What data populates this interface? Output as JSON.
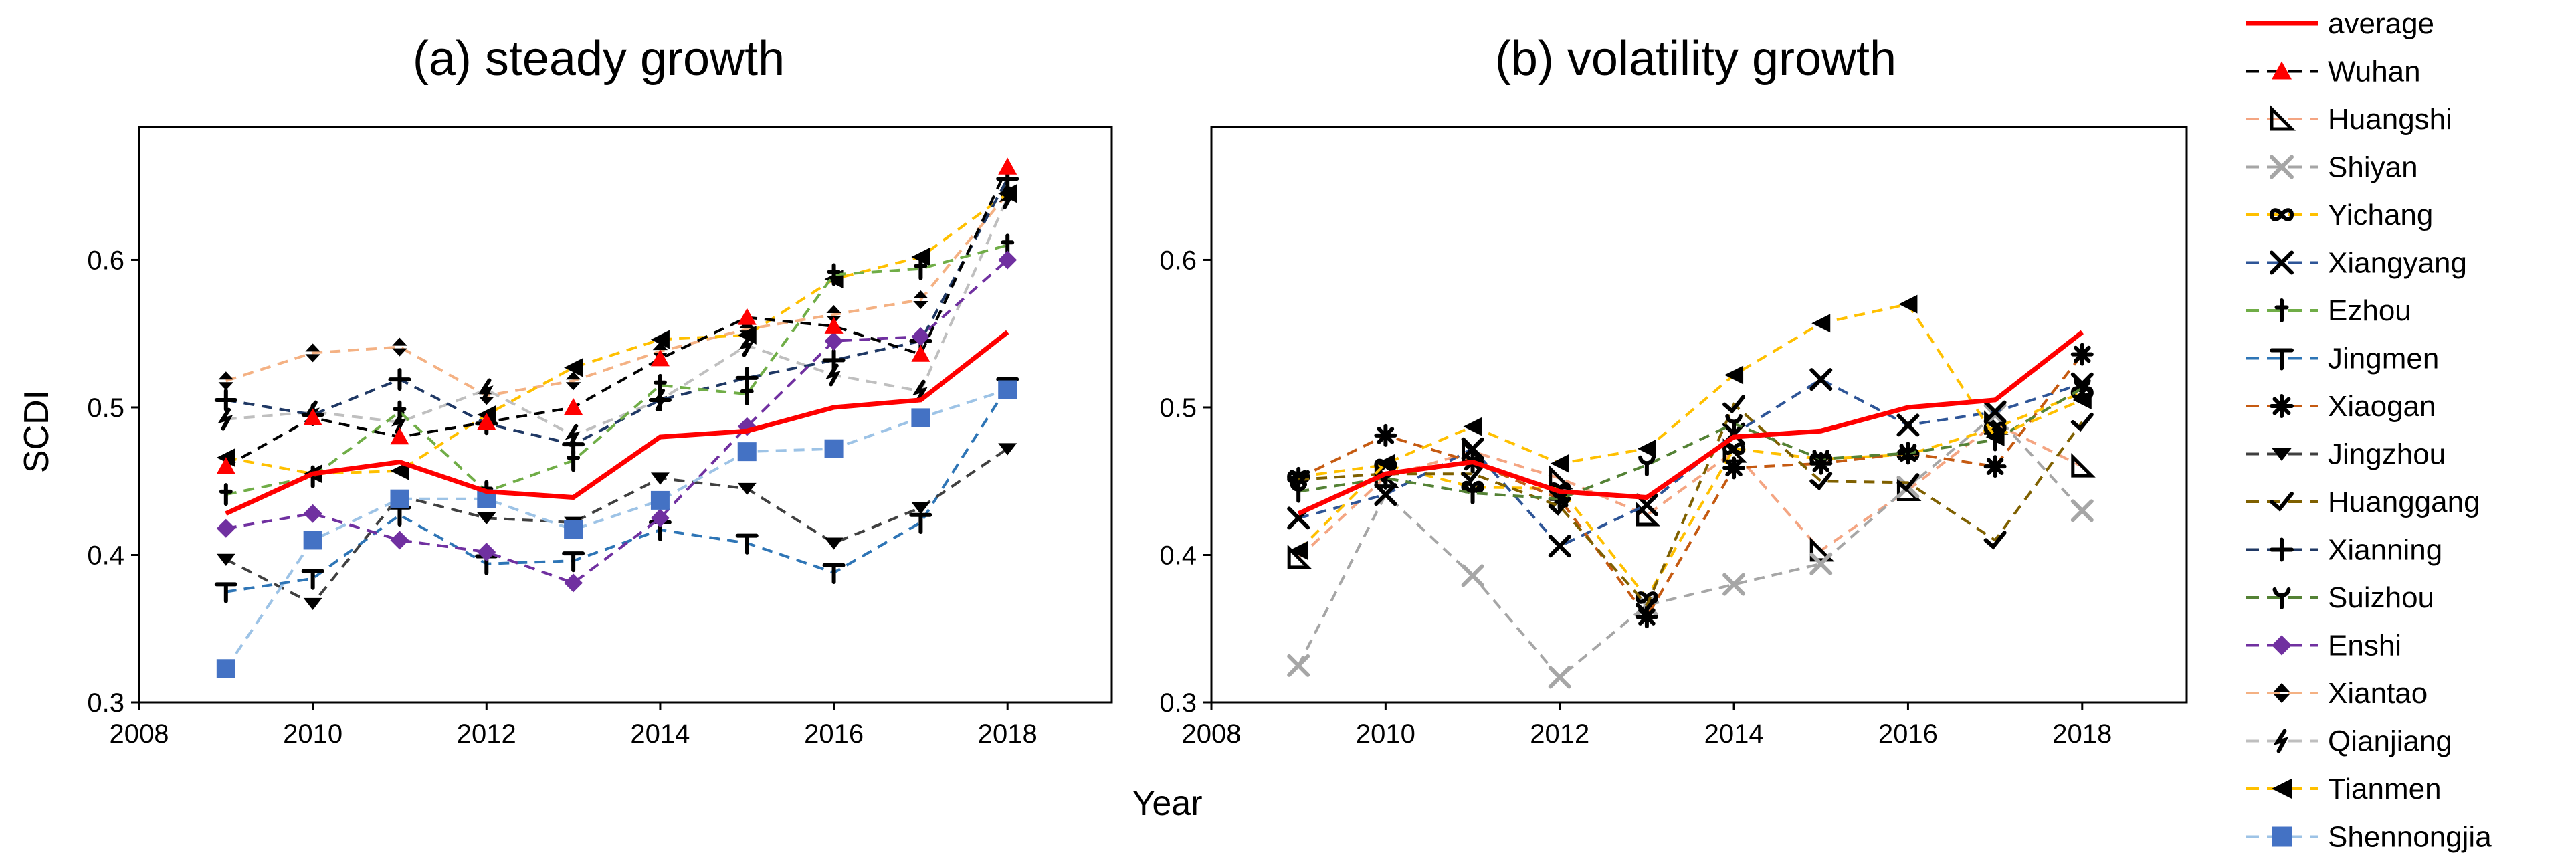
{
  "figure": {
    "shared_xlabel": "Year"
  },
  "legend": {
    "entries": [
      {
        "name": "average",
        "color": "#ff0000",
        "marker": "none",
        "dash": "solid"
      },
      {
        "name": "Wuhan",
        "color": "#000000",
        "marker": "triangle",
        "marker_color": "#ff0000",
        "dash": "dashed"
      },
      {
        "name": "Huangshi",
        "color": "#f4a582",
        "marker": "right-triangle",
        "marker_color": "#000000",
        "dash": "dashed"
      },
      {
        "name": "Shiyan",
        "color": "#a6a6a6",
        "marker": "x",
        "marker_color": "#a6a6a6",
        "dash": "dashed"
      },
      {
        "name": "Yichang",
        "color": "#ffc000",
        "marker": "infinity",
        "marker_color": "#000000",
        "dash": "dashed"
      },
      {
        "name": "Xiangyang",
        "color": "#2e5597",
        "marker": "x",
        "marker_color": "#000000",
        "dash": "dashed"
      },
      {
        "name": "Ezhou",
        "color": "#70ad47",
        "marker": "dagger",
        "marker_color": "#000000",
        "dash": "dashed"
      },
      {
        "name": "Jingmen",
        "color": "#2e75b6",
        "marker": "T",
        "marker_color": "#000000",
        "dash": "dashed"
      },
      {
        "name": "Xiaogan",
        "color": "#c55a11",
        "marker": "asterisk",
        "marker_color": "#000000",
        "dash": "dashed"
      },
      {
        "name": "Jingzhou",
        "color": "#404040",
        "marker": "down-triangle",
        "marker_color": "#000000",
        "dash": "dashed"
      },
      {
        "name": "Huanggang",
        "color": "#7f6000",
        "marker": "check",
        "marker_color": "#000000",
        "dash": "dashed"
      },
      {
        "name": "Xianning",
        "color": "#1f3864",
        "marker": "plus",
        "marker_color": "#000000",
        "dash": "dashed"
      },
      {
        "name": "Suizhou",
        "color": "#548235",
        "marker": "trident",
        "marker_color": "#000000",
        "dash": "dashed"
      },
      {
        "name": "Enshi",
        "color": "#7030a0",
        "marker": "diamond",
        "marker_color": "#7030a0",
        "dash": "dashed"
      },
      {
        "name": "Xiantao",
        "color": "#f4b183",
        "marker": "split-diamond",
        "marker_color": "#000000",
        "dash": "dashed"
      },
      {
        "name": "Qianjiang",
        "color": "#bfbfbf",
        "marker": "bolt",
        "marker_color": "#000000",
        "dash": "dashed"
      },
      {
        "name": "Tianmen",
        "color": "#ffc000",
        "marker": "left-triangle",
        "marker_color": "#000000",
        "dash": "dashed"
      },
      {
        "name": "Shennongjia",
        "color": "#9dc3e6",
        "marker": "square",
        "marker_color": "#4472c4",
        "dash": "dashed"
      }
    ]
  },
  "chart_data": [
    {
      "type": "line",
      "title": "(a) steady growth",
      "xlabel": "",
      "ylabel": "SCDI",
      "xlim": [
        2008,
        2019.2
      ],
      "ylim": [
        0.3,
        0.69
      ],
      "xticks": [
        2008,
        2010,
        2012,
        2014,
        2016,
        2018
      ],
      "yticks": [
        0.3,
        0.4,
        0.5,
        0.6
      ],
      "x": [
        2009,
        2010,
        2011,
        2012,
        2013,
        2014,
        2015,
        2016,
        2017,
        2018
      ],
      "series": [
        {
          "name": "Xiantao",
          "values": [
            0.518,
            0.537,
            0.541,
            0.508,
            0.518,
            0.538,
            0.553,
            0.563,
            0.573,
            0.645
          ]
        },
        {
          "name": "Qianjiang",
          "values": [
            0.492,
            0.497,
            0.49,
            0.512,
            0.481,
            0.505,
            0.542,
            0.522,
            0.511,
            0.642
          ]
        },
        {
          "name": "Tianmen",
          "values": [
            0.466,
            0.455,
            0.457,
            0.495,
            0.527,
            0.546,
            0.549,
            0.587,
            0.602,
            0.645
          ]
        },
        {
          "name": "Xianning",
          "values": [
            0.505,
            0.495,
            0.519,
            0.489,
            0.475,
            0.505,
            0.52,
            0.532,
            0.545,
            0.655
          ]
        },
        {
          "name": "Ezhou",
          "values": [
            0.441,
            0.453,
            0.497,
            0.443,
            0.464,
            0.515,
            0.509,
            0.59,
            0.594,
            0.61
          ]
        },
        {
          "name": "Jingmen",
          "values": [
            0.375,
            0.384,
            0.427,
            0.394,
            0.396,
            0.417,
            0.408,
            0.388,
            0.422,
            0.514
          ]
        },
        {
          "name": "Jingzhou",
          "values": [
            0.397,
            0.367,
            0.44,
            0.425,
            0.422,
            0.452,
            0.445,
            0.408,
            0.432,
            0.472
          ]
        },
        {
          "name": "Enshi",
          "values": [
            0.418,
            0.428,
            0.41,
            0.402,
            0.381,
            0.425,
            0.487,
            0.545,
            0.548,
            0.6
          ]
        },
        {
          "name": "Wuhan",
          "values": [
            0.46,
            0.493,
            0.48,
            0.49,
            0.5,
            0.533,
            0.561,
            0.555,
            0.536,
            0.663
          ]
        },
        {
          "name": "Shennongjia",
          "values": [
            0.323,
            0.41,
            0.438,
            0.438,
            0.417,
            0.437,
            0.47,
            0.472,
            0.493,
            0.512
          ]
        },
        {
          "name": "average",
          "values": [
            0.428,
            0.455,
            0.463,
            0.443,
            0.439,
            0.48,
            0.484,
            0.5,
            0.505,
            0.551
          ]
        }
      ]
    },
    {
      "type": "line",
      "title": "(b) volatility growth",
      "xlabel": "",
      "ylabel": "",
      "xlim": [
        2008,
        2019.2
      ],
      "ylim": [
        0.3,
        0.69
      ],
      "xticks": [
        2008,
        2010,
        2012,
        2014,
        2016,
        2018
      ],
      "yticks": [
        0.3,
        0.4,
        0.5,
        0.6
      ],
      "x": [
        2009,
        2010,
        2011,
        2012,
        2013,
        2014,
        2015,
        2016,
        2017,
        2018
      ],
      "series": [
        {
          "name": "Huangshi",
          "values": [
            0.398,
            0.453,
            0.47,
            0.452,
            0.427,
            0.47,
            0.403,
            0.444,
            0.489,
            0.46
          ]
        },
        {
          "name": "Shiyan",
          "values": [
            0.325,
            0.441,
            0.386,
            0.317,
            0.366,
            0.38,
            0.394,
            0.446,
            0.495,
            0.43
          ]
        },
        {
          "name": "Yichang",
          "values": [
            0.453,
            0.461,
            0.446,
            0.445,
            0.371,
            0.472,
            0.465,
            0.468,
            0.486,
            0.51
          ]
        },
        {
          "name": "Xiangyang",
          "values": [
            0.425,
            0.441,
            0.472,
            0.406,
            0.434,
            0.482,
            0.519,
            0.488,
            0.497,
            0.516
          ]
        },
        {
          "name": "Xiaogan",
          "values": [
            0.452,
            0.481,
            0.463,
            0.438,
            0.358,
            0.459,
            0.462,
            0.469,
            0.46,
            0.536
          ]
        },
        {
          "name": "Huanggang",
          "values": [
            0.451,
            0.455,
            0.455,
            0.433,
            0.366,
            0.502,
            0.45,
            0.449,
            0.41,
            0.49
          ]
        },
        {
          "name": "Suizhou",
          "values": [
            0.443,
            0.452,
            0.442,
            0.438,
            0.461,
            0.489,
            0.465,
            0.469,
            0.478,
            0.513
          ]
        },
        {
          "name": "Tianmen",
          "values": [
            0.403,
            0.462,
            0.487,
            0.462,
            0.472,
            0.522,
            0.557,
            0.57,
            0.48,
            0.505
          ]
        },
        {
          "name": "average",
          "values": [
            0.428,
            0.455,
            0.463,
            0.443,
            0.439,
            0.48,
            0.484,
            0.5,
            0.505,
            0.551
          ]
        }
      ]
    }
  ]
}
